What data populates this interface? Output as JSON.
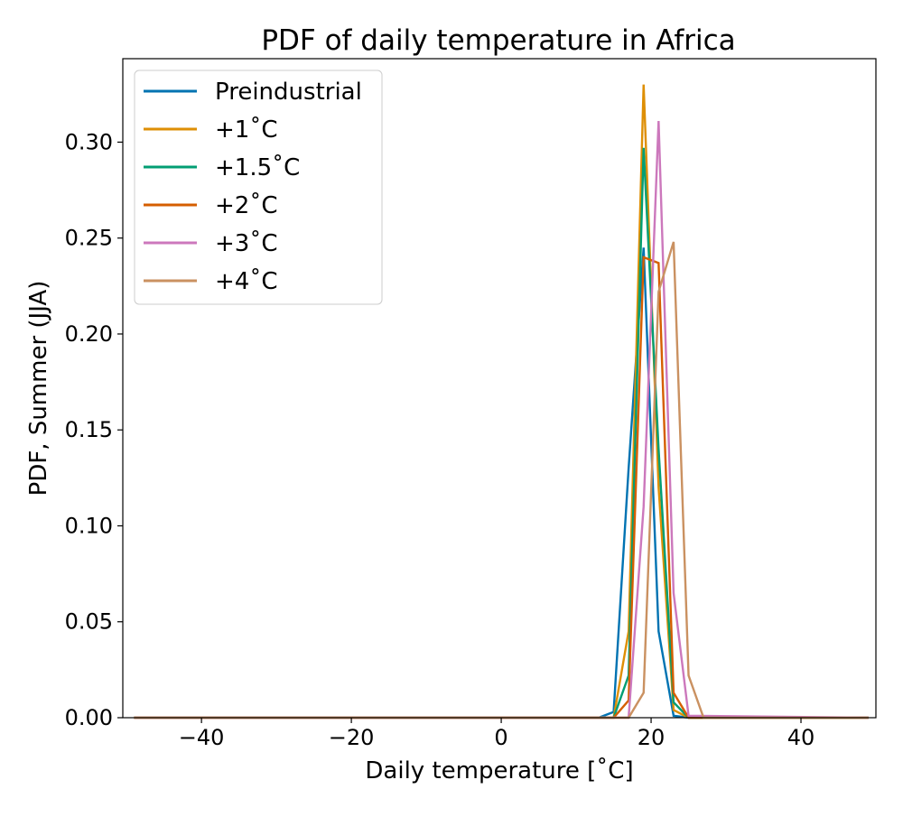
{
  "chart_data": {
    "type": "line",
    "title": "PDF of daily temperature in Africa",
    "xlabel": "Daily temperature [˚C]",
    "ylabel": "PDF, Summer (JJA)",
    "xlim": [
      -50.5,
      50
    ],
    "ylim": [
      0,
      0.3435
    ],
    "xticks": [
      -40,
      -20,
      0,
      20,
      40
    ],
    "xtick_labels": [
      "−40",
      "−20",
      "0",
      "20",
      "40"
    ],
    "yticks": [
      0.0,
      0.05,
      0.1,
      0.15,
      0.2,
      0.25,
      0.3
    ],
    "ytick_labels": [
      "0.00",
      "0.05",
      "0.10",
      "0.15",
      "0.20",
      "0.25",
      "0.30"
    ],
    "grid": false,
    "legend_position": "upper-left",
    "series": [
      {
        "name": "Preindustrial",
        "color": "#0173b2",
        "x": [
          -49,
          13,
          15,
          17,
          19,
          21,
          23,
          25,
          49
        ],
        "y": [
          0,
          0,
          0.003,
          0.13,
          0.245,
          0.045,
          0.001,
          0,
          0
        ]
      },
      {
        "name": "+1˚C",
        "color": "#de8f05",
        "x": [
          -49,
          15,
          17,
          19,
          21,
          23,
          25,
          49
        ],
        "y": [
          0,
          0,
          0.045,
          0.33,
          0.12,
          0.004,
          0,
          0
        ]
      },
      {
        "name": "+1.5˚C",
        "color": "#029e73",
        "x": [
          -49,
          15,
          17,
          19,
          21,
          23,
          25,
          49
        ],
        "y": [
          0,
          0,
          0.022,
          0.297,
          0.14,
          0.008,
          0,
          0
        ]
      },
      {
        "name": "+2˚C",
        "color": "#d55e00",
        "x": [
          -49,
          15,
          17,
          19,
          21,
          23,
          25,
          49
        ],
        "y": [
          0,
          0,
          0.009,
          0.24,
          0.237,
          0.013,
          0,
          0
        ]
      },
      {
        "name": "+3˚C",
        "color": "#cc78bc",
        "x": [
          -49,
          17,
          19,
          21,
          23,
          25,
          49
        ],
        "y": [
          0,
          0,
          0.11,
          0.311,
          0.065,
          0.001,
          0
        ]
      },
      {
        "name": "+4˚C",
        "color": "#ca9161",
        "x": [
          -49,
          17,
          19,
          21,
          23,
          25,
          27,
          49
        ],
        "y": [
          0,
          0,
          0.013,
          0.222,
          0.248,
          0.022,
          0,
          0
        ]
      }
    ]
  }
}
